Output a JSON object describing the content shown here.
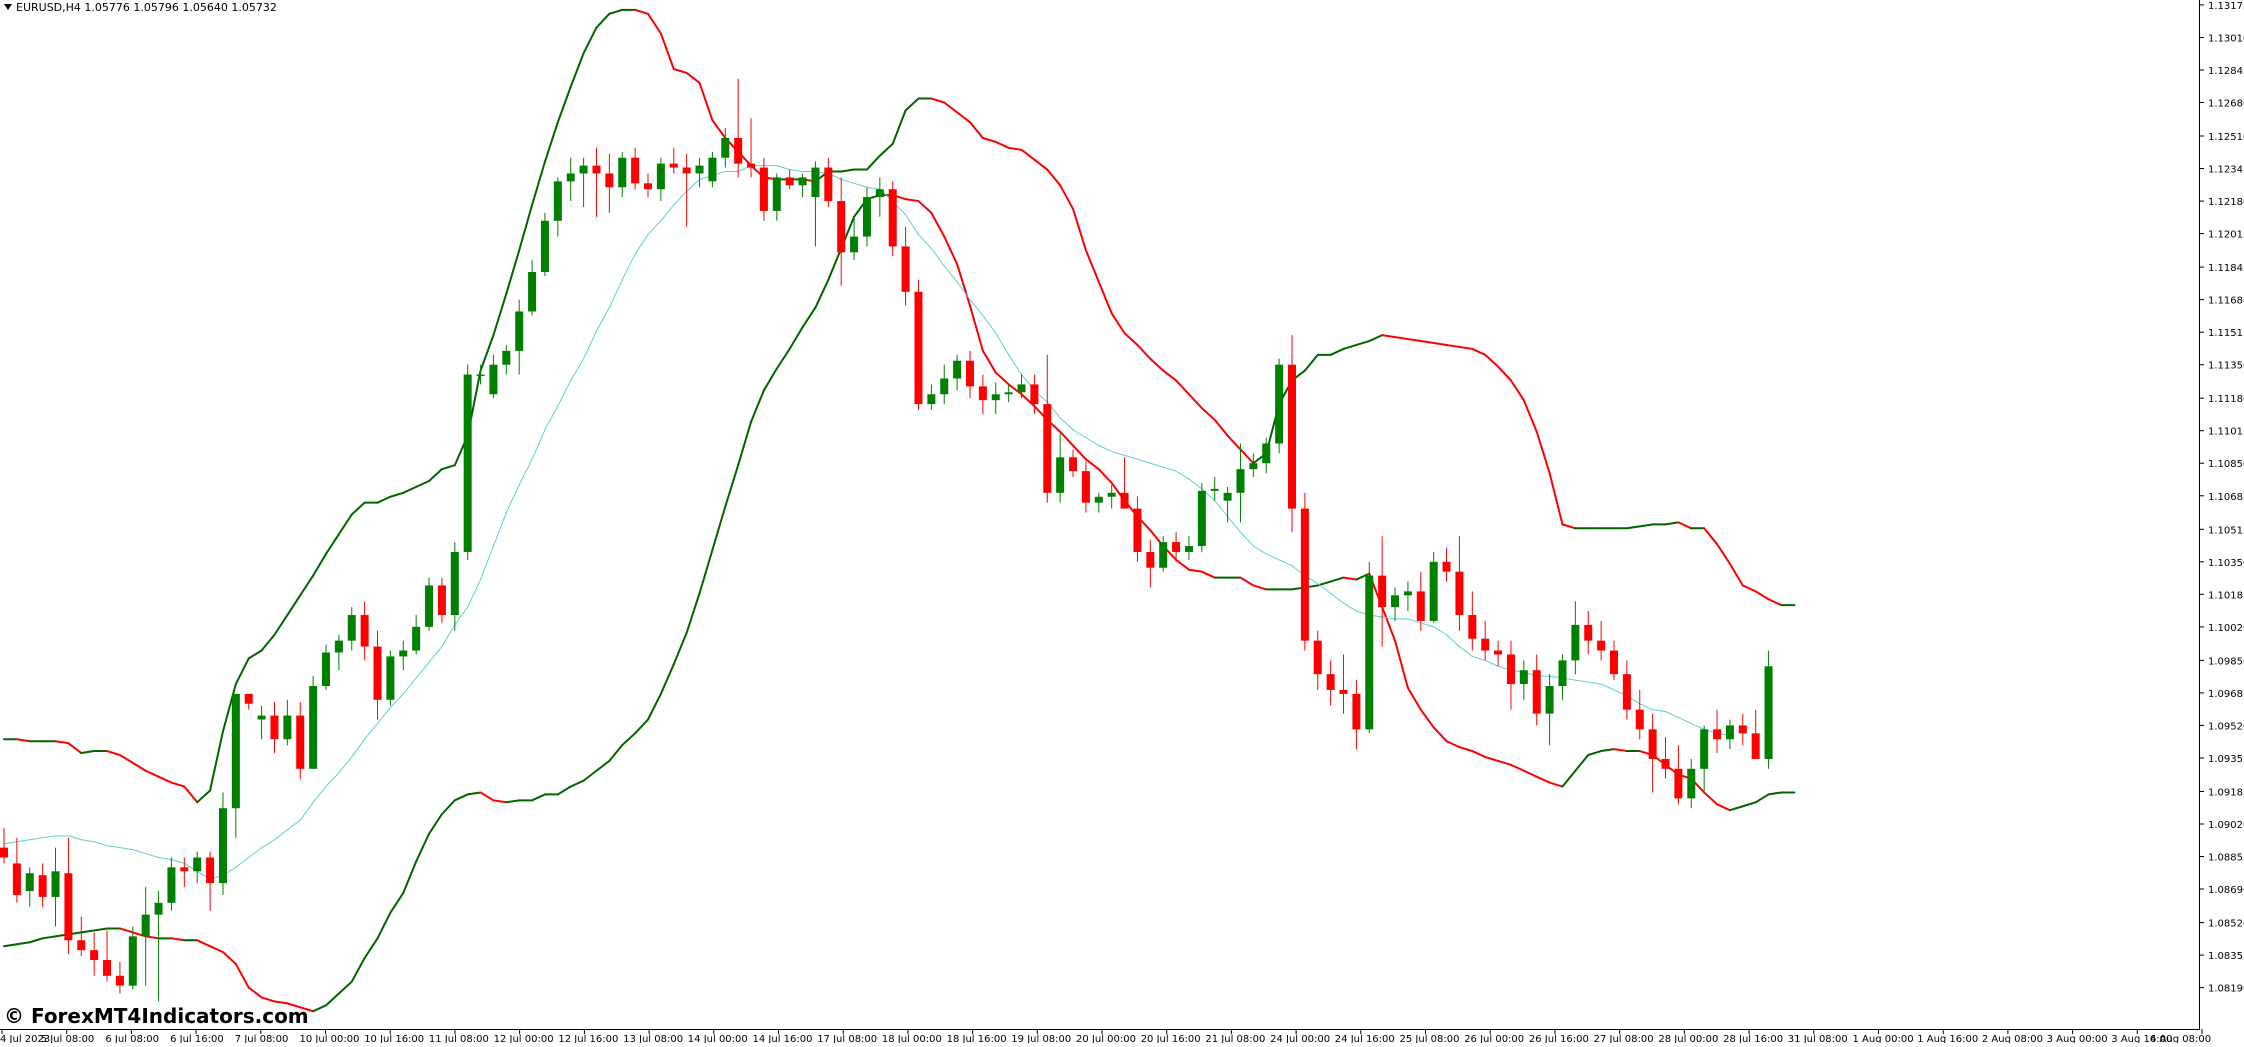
{
  "chart_data": {
    "type": "candlestick",
    "symbol_header": {
      "symbol": "EURUSD,H4",
      "ohlc": [
        "1.05776",
        "1.05796",
        "1.05640",
        "1.05732"
      ]
    },
    "watermark": "© ForexMT4Indicators.com",
    "ylim": [
      1.0798,
      1.132
    ],
    "y_ticks": [
      "1.13175",
      "1.13010",
      "1.12845",
      "1.12680",
      "1.12510",
      "1.12345",
      "1.12180",
      "1.12015",
      "1.11845",
      "1.11680",
      "1.11515",
      "1.11350",
      "1.11180",
      "1.11015",
      "1.10850",
      "1.10685",
      "1.10515",
      "1.10350",
      "1.10185",
      "1.10020",
      "1.09850",
      "1.09685",
      "1.09520",
      "1.09355",
      "1.09185",
      "1.09020",
      "1.08855",
      "1.08690",
      "1.08520",
      "1.08355",
      "1.08190"
    ],
    "x_ticks": [
      "4 Jul 2023",
      "5 Jul 08:00",
      "6 Jul 08:00",
      "6 Jul 16:00",
      "7 Jul 08:00",
      "10 Jul 00:00",
      "10 Jul 16:00",
      "11 Jul 08:00",
      "12 Jul 00:00",
      "12 Jul 16:00",
      "13 Jul 08:00",
      "14 Jul 00:00",
      "14 Jul 16:00",
      "17 Jul 08:00",
      "18 Jul 00:00",
      "18 Jul 16:00",
      "19 Jul 08:00",
      "20 Jul 00:00",
      "20 Jul 16:00",
      "21 Jul 08:00",
      "24 Jul 00:00",
      "24 Jul 16:00",
      "25 Jul 08:00",
      "26 Jul 00:00",
      "26 Jul 16:00",
      "27 Jul 08:00",
      "28 Jul 00:00",
      "28 Jul 16:00",
      "31 Jul 08:00",
      "1 Aug 00:00",
      "1 Aug 16:00",
      "2 Aug 08:00",
      "3 Aug 00:00",
      "3 Aug 16:00",
      "4 Aug 08:00"
    ],
    "colors": {
      "bull": "#008000",
      "bear": "#ff0000",
      "middle_band": "#5fcfcf",
      "band_rising": "#006400",
      "band_falling": "#ff0000"
    },
    "candles": [
      [
        1.089,
        1.09,
        1.0882,
        1.0885
      ],
      [
        1.0882,
        1.0895,
        1.0862,
        1.0866
      ],
      [
        1.0868,
        1.088,
        1.086,
        1.0877
      ],
      [
        1.0876,
        1.0882,
        1.086,
        1.0865
      ],
      [
        1.0865,
        1.089,
        1.085,
        1.0878
      ],
      [
        1.0877,
        1.0895,
        1.0836,
        1.0843
      ],
      [
        1.0843,
        1.0855,
        1.0835,
        1.0838
      ],
      [
        1.0838,
        1.0847,
        1.0825,
        1.0833
      ],
      [
        1.0833,
        1.0848,
        1.0822,
        1.0825
      ],
      [
        1.0825,
        1.0832,
        1.0816,
        1.082
      ],
      [
        1.082,
        1.085,
        1.0818,
        1.0845
      ],
      [
        1.0845,
        1.087,
        1.082,
        1.0856
      ],
      [
        1.0856,
        1.0868,
        1.0812,
        1.0862
      ],
      [
        1.0862,
        1.0885,
        1.0858,
        1.088
      ],
      [
        1.088,
        1.0885,
        1.087,
        1.0878
      ],
      [
        1.0878,
        1.0888,
        1.0872,
        1.0885
      ],
      [
        1.0885,
        1.0888,
        1.0858,
        1.0872
      ],
      [
        1.0872,
        1.0918,
        1.0866,
        1.091
      ],
      [
        1.091,
        1.0968,
        1.0895,
        1.0968
      ],
      [
        1.0968,
        1.0968,
        1.096,
        1.0963
      ],
      [
        1.0955,
        1.0962,
        1.0945,
        1.0957
      ],
      [
        1.0957,
        1.0964,
        1.0938,
        1.0945
      ],
      [
        1.0945,
        1.0965,
        1.0942,
        1.0957
      ],
      [
        1.0957,
        1.0964,
        1.0925,
        1.093
      ],
      [
        1.093,
        1.0977,
        1.093,
        1.0972
      ],
      [
        1.0972,
        1.0993,
        1.097,
        1.0989
      ],
      [
        1.0989,
        1.0998,
        1.098,
        1.0995
      ],
      [
        1.0995,
        1.1012,
        1.099,
        1.1008
      ],
      [
        1.1008,
        1.1015,
        1.0985,
        1.0992
      ],
      [
        1.0992,
        1.1,
        1.0955,
        1.0965
      ],
      [
        1.0965,
        1.099,
        1.0962,
        1.0987
      ],
      [
        1.0987,
        1.0995,
        1.098,
        1.099
      ],
      [
        1.099,
        1.1008,
        1.0988,
        1.1002
      ],
      [
        1.1002,
        1.1027,
        1.1,
        1.1023
      ],
      [
        1.1023,
        1.1027,
        1.1004,
        1.1008
      ],
      [
        1.1008,
        1.1045,
        1.1,
        1.104
      ],
      [
        1.104,
        1.1135,
        1.1036,
        1.113
      ],
      [
        1.113,
        1.1135,
        1.1125,
        1.113
      ],
      [
        1.112,
        1.114,
        1.1118,
        1.1135
      ],
      [
        1.1135,
        1.1145,
        1.113,
        1.1142
      ],
      [
        1.1142,
        1.1168,
        1.113,
        1.1162
      ],
      [
        1.1162,
        1.1188,
        1.116,
        1.1182
      ],
      [
        1.1182,
        1.1212,
        1.118,
        1.1208
      ],
      [
        1.1208,
        1.123,
        1.12,
        1.1228
      ],
      [
        1.1228,
        1.124,
        1.1218,
        1.1232
      ],
      [
        1.1232,
        1.124,
        1.1215,
        1.1236
      ],
      [
        1.1236,
        1.1245,
        1.121,
        1.1232
      ],
      [
        1.1232,
        1.1242,
        1.1212,
        1.1225
      ],
      [
        1.1225,
        1.1243,
        1.122,
        1.124
      ],
      [
        1.124,
        1.1245,
        1.1224,
        1.1227
      ],
      [
        1.1227,
        1.1232,
        1.122,
        1.1224
      ],
      [
        1.1224,
        1.124,
        1.1218,
        1.1237
      ],
      [
        1.1237,
        1.1245,
        1.1232,
        1.1235
      ],
      [
        1.1235,
        1.1242,
        1.1205,
        1.1232
      ],
      [
        1.1232,
        1.124,
        1.1225,
        1.1236
      ],
      [
        1.1228,
        1.1243,
        1.1225,
        1.124
      ],
      [
        1.124,
        1.1255,
        1.1235,
        1.125
      ],
      [
        1.125,
        1.128,
        1.123,
        1.1237
      ],
      [
        1.1237,
        1.126,
        1.123,
        1.1235
      ],
      [
        1.1235,
        1.124,
        1.1208,
        1.1213
      ],
      [
        1.1213,
        1.1232,
        1.1208,
        1.123
      ],
      [
        1.123,
        1.1234,
        1.1224,
        1.1226
      ],
      [
        1.1226,
        1.1232,
        1.122,
        1.123
      ],
      [
        1.122,
        1.1238,
        1.1195,
        1.1235
      ],
      [
        1.1235,
        1.124,
        1.1215,
        1.1218
      ],
      [
        1.1218,
        1.123,
        1.1175,
        1.1192
      ],
      [
        1.1192,
        1.121,
        1.1188,
        1.12
      ],
      [
        1.12,
        1.1225,
        1.1195,
        1.122
      ],
      [
        1.122,
        1.123,
        1.121,
        1.1224
      ],
      [
        1.1224,
        1.1228,
        1.119,
        1.1195
      ],
      [
        1.1195,
        1.1205,
        1.1165,
        1.1172
      ],
      [
        1.1172,
        1.1178,
        1.1112,
        1.1115
      ],
      [
        1.1115,
        1.1125,
        1.1112,
        1.112
      ],
      [
        1.112,
        1.1135,
        1.1115,
        1.1128
      ],
      [
        1.1128,
        1.114,
        1.1122,
        1.1137
      ],
      [
        1.1137,
        1.1142,
        1.1118,
        1.1124
      ],
      [
        1.1124,
        1.113,
        1.111,
        1.1117
      ],
      [
        1.1117,
        1.1126,
        1.111,
        1.112
      ],
      [
        1.112,
        1.1125,
        1.1116,
        1.1121
      ],
      [
        1.1121,
        1.113,
        1.1118,
        1.1125
      ],
      [
        1.1125,
        1.113,
        1.111,
        1.1115
      ],
      [
        1.1115,
        1.114,
        1.1065,
        1.107
      ],
      [
        1.107,
        1.11,
        1.1065,
        1.1088
      ],
      [
        1.1088,
        1.1092,
        1.1078,
        1.1081
      ],
      [
        1.1081,
        1.1086,
        1.106,
        1.1065
      ],
      [
        1.1065,
        1.107,
        1.106,
        1.1068
      ],
      [
        1.1068,
        1.1074,
        1.1062,
        1.107
      ],
      [
        1.107,
        1.1088,
        1.1062,
        1.1062
      ],
      [
        1.1062,
        1.1068,
        1.1035,
        1.104
      ],
      [
        1.104,
        1.1046,
        1.1022,
        1.1032
      ],
      [
        1.1032,
        1.1048,
        1.103,
        1.1045
      ],
      [
        1.1045,
        1.105,
        1.1035,
        1.104
      ],
      [
        1.104,
        1.1048,
        1.1036,
        1.1043
      ],
      [
        1.1043,
        1.1075,
        1.104,
        1.1071
      ],
      [
        1.1071,
        1.1078,
        1.1066,
        1.1072
      ],
      [
        1.1066,
        1.1073,
        1.1055,
        1.107
      ],
      [
        1.107,
        1.1095,
        1.1055,
        1.1082
      ],
      [
        1.1082,
        1.109,
        1.1078,
        1.1085
      ],
      [
        1.1085,
        1.1098,
        1.108,
        1.1095
      ],
      [
        1.1095,
        1.1138,
        1.109,
        1.1135
      ],
      [
        1.1135,
        1.115,
        1.105,
        1.1062
      ],
      [
        1.1062,
        1.107,
        1.099,
        1.0995
      ],
      [
        1.0995,
        1.1,
        1.097,
        1.0978
      ],
      [
        1.0978,
        1.0985,
        1.0962,
        1.097
      ],
      [
        1.097,
        1.0988,
        1.0958,
        1.0968
      ],
      [
        1.0968,
        1.0975,
        1.094,
        1.095
      ],
      [
        1.095,
        1.1035,
        1.0948,
        1.1028
      ],
      [
        1.1028,
        1.1048,
        1.0992,
        1.1012
      ],
      [
        1.1012,
        1.1022,
        1.1005,
        1.1018
      ],
      [
        1.1018,
        1.1025,
        1.101,
        1.102
      ],
      [
        1.102,
        1.103,
        1.1,
        1.1005
      ],
      [
        1.1005,
        1.104,
        1.1004,
        1.1035
      ],
      [
        1.1035,
        1.1042,
        1.1025,
        1.103
      ],
      [
        1.103,
        1.1048,
        1.1,
        1.1008
      ],
      [
        1.1008,
        1.102,
        1.099,
        1.0996
      ],
      [
        1.0996,
        1.1005,
        1.0985,
        1.099
      ],
      [
        1.099,
        1.0995,
        1.0982,
        1.0988
      ],
      [
        1.0988,
        1.0995,
        1.096,
        1.0973
      ],
      [
        1.0973,
        1.0985,
        1.0965,
        1.098
      ],
      [
        1.098,
        1.0988,
        1.0952,
        1.0958
      ],
      [
        1.0958,
        1.0978,
        1.0942,
        1.0972
      ],
      [
        1.0972,
        1.0988,
        1.0965,
        1.0985
      ],
      [
        1.0985,
        1.1015,
        1.0978,
        1.1003
      ],
      [
        1.1003,
        1.101,
        1.0988,
        1.0995
      ],
      [
        1.0995,
        1.1005,
        1.0985,
        1.099
      ],
      [
        1.099,
        1.0995,
        1.0975,
        1.0978
      ],
      [
        1.0978,
        1.0985,
        1.0955,
        1.096
      ],
      [
        1.096,
        1.097,
        1.0945,
        1.095
      ],
      [
        1.095,
        1.0958,
        1.0918,
        1.0935
      ],
      [
        1.0935,
        1.0946,
        1.0925,
        1.093
      ],
      [
        1.093,
        1.0942,
        1.0912,
        1.0915
      ],
      [
        1.0915,
        1.0935,
        1.091,
        1.093
      ],
      [
        1.093,
        1.0952,
        1.0918,
        1.095
      ],
      [
        1.095,
        1.096,
        1.0938,
        1.0945
      ],
      [
        1.0945,
        1.0955,
        1.094,
        1.0952
      ],
      [
        1.0952,
        1.0958,
        1.0942,
        1.0948
      ],
      [
        1.0948,
        1.096,
        1.0935,
        1.0935
      ],
      [
        1.0935,
        1.099,
        1.093,
        1.0982
      ]
    ],
    "upper_band": [
      1.0945,
      1.0945,
      1.0944,
      1.0944,
      1.0944,
      1.0943,
      1.0938,
      1.0939,
      1.0939,
      1.0937,
      1.0933,
      1.0929,
      1.0926,
      1.0923,
      1.0921,
      1.0913,
      1.0919,
      1.0949,
      1.0973,
      1.0986,
      1.099,
      1.0998,
      1.1008,
      1.1018,
      1.1028,
      1.1039,
      1.1049,
      1.1059,
      1.1065,
      1.1065,
      1.1068,
      1.107,
      1.1073,
      1.1076,
      1.1082,
      1.1084,
      1.1099,
      1.1132,
      1.115,
      1.1171,
      1.1193,
      1.1216,
      1.1238,
      1.1258,
      1.1276,
      1.1293,
      1.1306,
      1.1313,
      1.1315,
      1.1315,
      1.1313,
      1.1303,
      1.1285,
      1.1283,
      1.1278,
      1.1259,
      1.125,
      1.1243,
      1.1236,
      1.123,
      1.1229,
      1.1229,
      1.1229,
      1.1228,
      1.1233,
      1.1233,
      1.1234,
      1.1234,
      1.1241,
      1.1247,
      1.1264,
      1.127,
      1.127,
      1.1268,
      1.1263,
      1.1258,
      1.125,
      1.1248,
      1.1245,
      1.1244,
      1.1239,
      1.1234,
      1.1226,
      1.1214,
      1.1193,
      1.1177,
      1.1161,
      1.1151,
      1.1145,
      1.1138,
      1.1132,
      1.1127,
      1.112,
      1.1113,
      1.1107,
      1.1099,
      1.1092,
      1.1085,
      1.109,
      1.1115,
      1.1127,
      1.1132,
      1.114,
      1.114,
      1.1143,
      1.1145,
      1.1147,
      1.115,
      1.1149,
      1.1148,
      1.1147,
      1.1146,
      1.1145,
      1.1144,
      1.1143,
      1.114,
      1.1134,
      1.1127,
      1.1117,
      1.1101,
      1.108,
      1.1054,
      1.1052,
      1.1052,
      1.1052,
      1.1052,
      1.1052,
      1.1053,
      1.1054,
      1.1054,
      1.1055,
      1.1052,
      1.1052,
      1.1044,
      1.1034,
      1.1023,
      1.102,
      1.1016,
      1.1013,
      1.1013
    ],
    "middle_band": [
      1.0892,
      1.0893,
      1.0894,
      1.0895,
      1.0896,
      1.0896,
      1.0894,
      1.0893,
      1.0891,
      1.089,
      1.0889,
      1.0887,
      1.0885,
      1.0884,
      1.0882,
      1.0878,
      1.0874,
      1.0876,
      1.088,
      1.0885,
      1.089,
      1.0894,
      1.0899,
      1.0904,
      1.0913,
      1.0921,
      1.0928,
      1.0936,
      1.0945,
      1.0953,
      1.0961,
      1.0968,
      1.0976,
      1.0984,
      1.0992,
      1.1003,
      1.1012,
      1.1026,
      1.1043,
      1.106,
      1.1074,
      1.1087,
      1.1102,
      1.1114,
      1.1127,
      1.1138,
      1.1152,
      1.1164,
      1.1178,
      1.1191,
      1.1201,
      1.1208,
      1.1216,
      1.1223,
      1.1229,
      1.1231,
      1.1233,
      1.1233,
      1.1236,
      1.1236,
      1.1236,
      1.1234,
      1.1233,
      1.1233,
      1.1232,
      1.1229,
      1.1227,
      1.1225,
      1.1224,
      1.1218,
      1.1211,
      1.1201,
      1.1194,
      1.1185,
      1.1177,
      1.1168,
      1.116,
      1.1151,
      1.114,
      1.113,
      1.1122,
      1.1116,
      1.1108,
      1.1102,
      1.1098,
      1.1094,
      1.1091,
      1.1089,
      1.1087,
      1.1085,
      1.1083,
      1.1081,
      1.1077,
      1.1072,
      1.1066,
      1.1058,
      1.105,
      1.1043,
      1.1039,
      1.1036,
      1.1033,
      1.1028,
      1.1024,
      1.1019,
      1.1014,
      1.101,
      1.1008,
      1.1007,
      1.1006,
      1.1006,
      1.1004,
      1.1002,
      1.0998,
      1.0992,
      1.0987,
      1.0985,
      1.0982,
      1.098,
      1.0979,
      1.0977,
      1.0977,
      1.0976,
      1.0975,
      1.0974,
      1.0973,
      1.097,
      1.0967,
      1.0963,
      1.096,
      1.0959,
      1.0956,
      1.0953,
      1.095,
      1.0948,
      1.0947
    ],
    "lower_band": [
      1.084,
      1.0841,
      1.0842,
      1.0844,
      1.0845,
      1.0846,
      1.0847,
      1.0848,
      1.0849,
      1.0849,
      1.0847,
      1.0845,
      1.0844,
      1.0844,
      1.0843,
      1.0843,
      1.084,
      1.0837,
      1.0831,
      1.0819,
      1.0814,
      1.0812,
      1.0811,
      1.0809,
      1.0807,
      1.081,
      1.0816,
      1.0822,
      1.0834,
      1.0844,
      1.0857,
      1.0867,
      1.0883,
      1.0897,
      1.0907,
      1.0914,
      1.0917,
      1.0918,
      1.0914,
      1.0913,
      1.0914,
      1.0914,
      1.0917,
      1.0917,
      1.0921,
      1.0924,
      1.0929,
      1.0934,
      1.0942,
      1.0948,
      1.0955,
      1.0968,
      1.0983,
      1.0999,
      1.1019,
      1.1041,
      1.1063,
      1.1084,
      1.1106,
      1.1122,
      1.1133,
      1.1143,
      1.1154,
      1.1164,
      1.1178,
      1.1194,
      1.121,
      1.1219,
      1.1221,
      1.1221,
      1.1219,
      1.1218,
      1.1212,
      1.12,
      1.1186,
      1.1165,
      1.1142,
      1.1131,
      1.1125,
      1.112,
      1.1114,
      1.1107,
      1.1101,
      1.1094,
      1.1087,
      1.1082,
      1.1075,
      1.1066,
      1.1058,
      1.1051,
      1.1043,
      1.1036,
      1.1031,
      1.103,
      1.1027,
      1.1027,
      1.1027,
      1.1023,
      1.1021,
      1.1021,
      1.1021,
      1.1022,
      1.1023,
      1.1025,
      1.1027,
      1.1026,
      1.1029,
      1.1012,
      1.0995,
      1.0971,
      1.096,
      1.0951,
      1.0944,
      1.0941,
      1.0939,
      1.0936,
      1.0934,
      1.0932,
      1.0929,
      1.0926,
      1.0923,
      1.0921,
      1.0929,
      1.0937,
      1.0939,
      1.094,
      1.0939,
      1.0939,
      1.0937,
      1.0932,
      1.0927,
      1.0925,
      1.0918,
      1.0912,
      1.0909,
      1.0911,
      1.0913,
      1.0917,
      1.0918,
      1.0918
    ]
  }
}
